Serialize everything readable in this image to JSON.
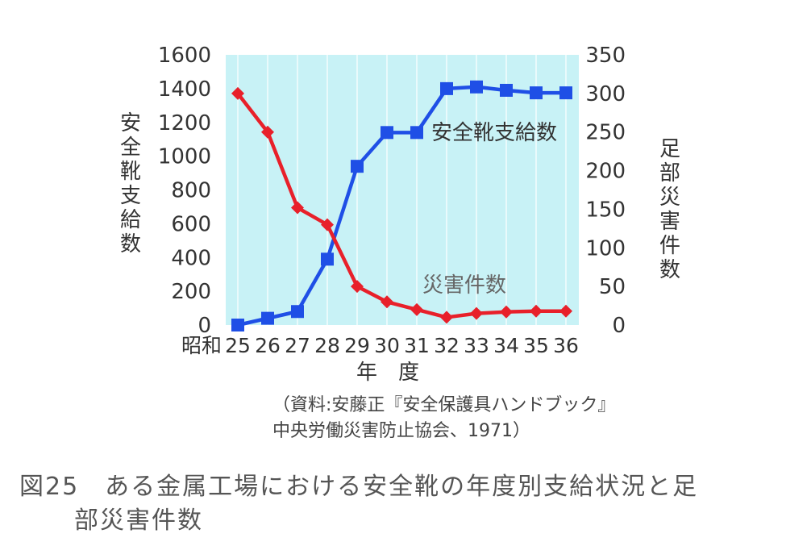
{
  "chart_data": {
    "type": "line",
    "era_label": "昭和",
    "categories": [
      "25",
      "26",
      "27",
      "28",
      "29",
      "30",
      "31",
      "32",
      "33",
      "34",
      "35",
      "36"
    ],
    "xlabel": "年　度",
    "ylabel_left": "安全靴支給数",
    "ylabel_right": "足部災害件数",
    "ylim_left": [
      0,
      1600
    ],
    "ylim_right": [
      0,
      350
    ],
    "yticks_left": [
      0,
      200,
      400,
      600,
      800,
      1000,
      1200,
      1400,
      1600
    ],
    "yticks_right": [
      0,
      50,
      100,
      150,
      200,
      250,
      300,
      350
    ],
    "plot_background": "#c8f2f6",
    "series": [
      {
        "name": "安全靴支給数",
        "axis": "left",
        "color": "#1f4fe6",
        "marker": "square",
        "values": [
          0,
          40,
          80,
          390,
          940,
          1140,
          1140,
          1400,
          1410,
          1390,
          1375,
          1375
        ]
      },
      {
        "name": "災害件数",
        "axis": "right",
        "color": "#e8202a",
        "marker": "diamond",
        "values": [
          300,
          250,
          152,
          130,
          50,
          30,
          20,
          10,
          15,
          17,
          18,
          18
        ]
      }
    ]
  },
  "source_line1": "（資料:安藤正『安全保護具ハンドブック』",
  "source_line2": "中央労働災害防止協会、1971）",
  "caption_line1": "図25　ある金属工場における安全靴の年度別支給状況と足",
  "caption_line2": "部災害件数"
}
